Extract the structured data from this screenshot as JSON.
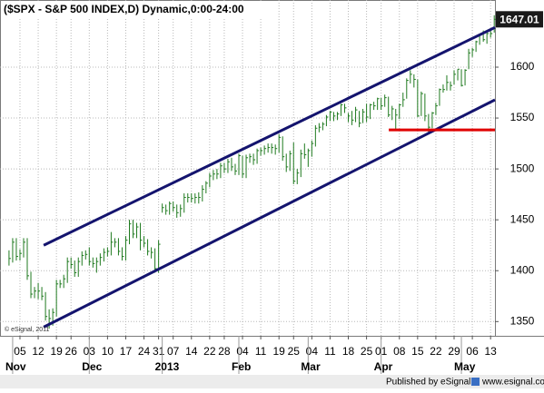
{
  "chart_data": {
    "type": "ohlc",
    "title": "($SPX - S&P 500 INDEX,D) Dynamic,0:00-24:00",
    "credit": "© eSignal, 2011",
    "publisher": "Published by eSignal",
    "url": "www.esignal.com",
    "color": "#1f7a1f",
    "grid": true,
    "x": [
      1,
      2,
      3,
      4,
      5,
      6,
      7,
      8,
      9,
      10,
      11,
      12,
      13,
      14,
      15,
      16,
      17,
      18,
      19,
      20,
      21,
      22,
      23,
      24,
      25,
      26,
      27,
      28,
      29,
      30,
      31,
      32,
      33,
      34,
      35,
      36,
      37,
      38,
      39,
      40,
      41,
      42,
      43,
      44,
      45,
      46,
      47,
      48,
      49,
      50,
      51,
      52,
      53,
      54,
      55,
      56,
      57,
      58,
      59,
      60,
      61,
      62,
      63,
      64,
      65,
      66,
      67,
      68,
      69,
      70,
      71,
      72,
      73,
      74,
      75,
      76,
      77,
      78,
      79,
      80,
      81,
      82,
      83,
      84,
      85,
      86,
      87,
      88,
      89,
      90,
      91,
      92,
      93,
      94,
      95,
      96,
      97,
      98,
      99,
      100,
      101,
      102,
      103,
      104,
      105,
      106,
      107,
      108,
      109,
      110,
      111,
      112,
      113,
      114,
      115,
      116,
      117,
      118,
      119,
      120,
      121,
      122,
      123,
      124,
      125,
      126,
      127,
      128,
      129,
      130,
      131,
      132,
      133,
      134
    ],
    "high": [
      1420,
      1432,
      1432,
      1421,
      1432,
      1432,
      1399,
      1384,
      1388,
      1384,
      1379,
      1362,
      1363,
      1391,
      1391,
      1396,
      1413,
      1413,
      1410,
      1413,
      1419,
      1420,
      1423,
      1413,
      1413,
      1417,
      1422,
      1423,
      1438,
      1432,
      1432,
      1423,
      1434,
      1450,
      1450,
      1447,
      1447,
      1434,
      1431,
      1423,
      1422,
      1430,
      1466,
      1465,
      1468,
      1468,
      1465,
      1465,
      1476,
      1476,
      1476,
      1476,
      1477,
      1484,
      1488,
      1496,
      1499,
      1500,
      1506,
      1506,
      1510,
      1511,
      1505,
      1515,
      1513,
      1514,
      1515,
      1515,
      1520,
      1521,
      1523,
      1525,
      1525,
      1524,
      1534,
      1532,
      1515,
      1518,
      1526,
      1500,
      1519,
      1525,
      1520,
      1528,
      1543,
      1545,
      1546,
      1553,
      1557,
      1556,
      1556,
      1564,
      1564,
      1555,
      1557,
      1561,
      1557,
      1559,
      1564,
      1564,
      1566,
      1570,
      1570,
      1573,
      1571,
      1562,
      1559,
      1564,
      1575,
      1589,
      1597,
      1593,
      1588,
      1576,
      1574,
      1554,
      1556,
      1565,
      1579,
      1583,
      1592,
      1586,
      1597,
      1598,
      1598,
      1598,
      1618,
      1619,
      1626,
      1633,
      1636,
      1635,
      1636,
      1651
    ],
    "low": [
      1405,
      1408,
      1410,
      1410,
      1413,
      1391,
      1373,
      1373,
      1372,
      1371,
      1351,
      1343,
      1346,
      1355,
      1383,
      1383,
      1388,
      1402,
      1394,
      1394,
      1405,
      1411,
      1405,
      1403,
      1398,
      1405,
      1409,
      1414,
      1415,
      1423,
      1415,
      1410,
      1410,
      1426,
      1432,
      1432,
      1420,
      1423,
      1415,
      1412,
      1398,
      1398,
      1457,
      1455,
      1455,
      1458,
      1452,
      1453,
      1457,
      1467,
      1467,
      1466,
      1466,
      1468,
      1476,
      1482,
      1489,
      1490,
      1491,
      1496,
      1496,
      1498,
      1494,
      1494,
      1491,
      1491,
      1506,
      1504,
      1505,
      1513,
      1514,
      1516,
      1515,
      1514,
      1516,
      1508,
      1497,
      1498,
      1485,
      1485,
      1492,
      1510,
      1502,
      1512,
      1522,
      1536,
      1538,
      1542,
      1547,
      1547,
      1548,
      1552,
      1555,
      1546,
      1543,
      1546,
      1541,
      1545,
      1546,
      1549,
      1558,
      1558,
      1558,
      1561,
      1551,
      1548,
      1539,
      1549,
      1561,
      1569,
      1584,
      1580,
      1551,
      1552,
      1547,
      1536,
      1540,
      1553,
      1562,
      1575,
      1577,
      1577,
      1583,
      1587,
      1581,
      1582,
      1598,
      1610,
      1615,
      1622,
      1625,
      1623,
      1629,
      1634
    ],
    "close": [
      1412,
      1428,
      1414,
      1417,
      1428,
      1395,
      1377,
      1380,
      1380,
      1375,
      1355,
      1353,
      1359,
      1387,
      1387,
      1392,
      1409,
      1406,
      1398,
      1409,
      1415,
      1416,
      1409,
      1407,
      1409,
      1413,
      1418,
      1419,
      1428,
      1428,
      1419,
      1414,
      1430,
      1446,
      1436,
      1443,
      1430,
      1427,
      1419,
      1418,
      1402,
      1426,
      1462,
      1459,
      1466,
      1462,
      1457,
      1461,
      1472,
      1472,
      1471,
      1472,
      1472,
      1480,
      1486,
      1493,
      1495,
      1495,
      1503,
      1500,
      1507,
      1502,
      1498,
      1513,
      1495,
      1511,
      1512,
      1509,
      1518,
      1518,
      1520,
      1521,
      1521,
      1520,
      1531,
      1512,
      1502,
      1515,
      1488,
      1496,
      1515,
      1514,
      1518,
      1525,
      1540,
      1541,
      1544,
      1551,
      1556,
      1552,
      1554,
      1563,
      1560,
      1552,
      1548,
      1558,
      1545,
      1556,
      1551,
      1563,
      1562,
      1569,
      1562,
      1570,
      1553,
      1559,
      1553,
      1563,
      1568,
      1587,
      1593,
      1588,
      1552,
      1574,
      1552,
      1541,
      1555,
      1562,
      1578,
      1578,
      1585,
      1582,
      1593,
      1598,
      1582,
      1597,
      1614,
      1617,
      1625,
      1632,
      1627,
      1633,
      1633,
      1647.01
    ],
    "xlim": [
      -1.47,
      134.2
    ],
    "ylim": [
      1336,
      1666
    ],
    "yticks": [
      1350,
      1400,
      1450,
      1500,
      1550,
      1600
    ],
    "xticks": [
      {
        "value": 4,
        "label": "05"
      },
      {
        "value": 9,
        "label": "12"
      },
      {
        "value": 14,
        "label": "19"
      },
      {
        "value": 18,
        "label": "26"
      },
      {
        "value": 23,
        "label": "03"
      },
      {
        "value": 28,
        "label": "10"
      },
      {
        "value": 33,
        "label": "17"
      },
      {
        "value": 38,
        "label": "24"
      },
      {
        "value": 42,
        "label": "31"
      },
      {
        "value": 46,
        "label": "07"
      },
      {
        "value": 51,
        "label": "14"
      },
      {
        "value": 56,
        "label": "22"
      },
      {
        "value": 60,
        "label": "28"
      },
      {
        "value": 65,
        "label": "04"
      },
      {
        "value": 70,
        "label": "11"
      },
      {
        "value": 75,
        "label": "19"
      },
      {
        "value": 79,
        "label": "25"
      },
      {
        "value": 84,
        "label": "04"
      },
      {
        "value": 89,
        "label": "11"
      },
      {
        "value": 94,
        "label": "18"
      },
      {
        "value": 99,
        "label": "25"
      },
      {
        "value": 103,
        "label": "01"
      },
      {
        "value": 108,
        "label": "08"
      },
      {
        "value": 113,
        "label": "15"
      },
      {
        "value": 118,
        "label": "22"
      },
      {
        "value": 123,
        "label": "29"
      },
      {
        "value": 128,
        "label": "06"
      },
      {
        "value": 133,
        "label": "13"
      }
    ],
    "month_ticks": [
      {
        "value": 2,
        "label": "Nov"
      },
      {
        "value": 23,
        "label": "Dec"
      },
      {
        "value": 43,
        "label": "2013"
      },
      {
        "value": 64,
        "label": "Feb"
      },
      {
        "value": 83,
        "label": "Mar"
      },
      {
        "value": 103,
        "label": "Apr"
      },
      {
        "value": 125,
        "label": "May"
      }
    ],
    "lines": [
      {
        "x": [
          10.5,
          134.2
        ],
        "y": [
          1425,
          1639
        ],
        "color": "#14146e"
      },
      {
        "x": [
          10.5,
          134.2
        ],
        "y": [
          1344.6,
          1567.9
        ],
        "color": "#14146e"
      },
      {
        "x": [
          105.1,
          134.2
        ],
        "y": [
          1538.4,
          1538.4
        ],
        "color": "#e00000"
      }
    ]
  }
}
